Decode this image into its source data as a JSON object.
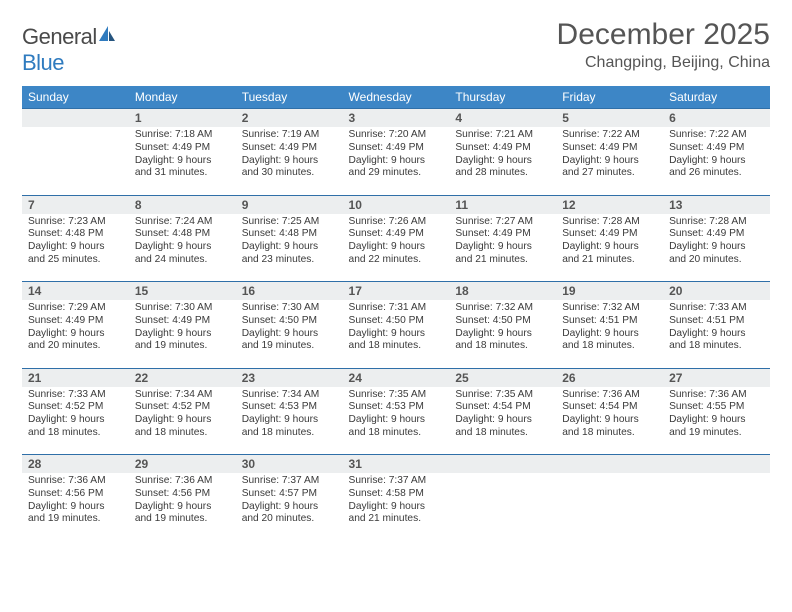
{
  "brand": {
    "part1": "General",
    "part2": "Blue"
  },
  "title": "December 2025",
  "location": "Changping, Beijing, China",
  "colors": {
    "header_bg": "#3d86c6",
    "header_text": "#ffffff",
    "daynum_bg": "#eceeef",
    "daynum_border": "#2f6fa8",
    "body_text": "#3a3a3a",
    "title_text": "#555555",
    "brand_grey": "#4a4a4a",
    "brand_blue": "#2f7bbf",
    "page_bg": "#ffffff"
  },
  "typography": {
    "title_fontsize": 30,
    "location_fontsize": 16,
    "dayhead_fontsize": 12,
    "cell_fontsize": 10.2
  },
  "day_headers": [
    "Sunday",
    "Monday",
    "Tuesday",
    "Wednesday",
    "Thursday",
    "Friday",
    "Saturday"
  ],
  "weeks": [
    {
      "nums": [
        "",
        "1",
        "2",
        "3",
        "4",
        "5",
        "6"
      ],
      "cells": [
        {
          "sunrise": "",
          "sunset": "",
          "daylight1": "",
          "daylight2": ""
        },
        {
          "sunrise": "Sunrise: 7:18 AM",
          "sunset": "Sunset: 4:49 PM",
          "daylight1": "Daylight: 9 hours",
          "daylight2": "and 31 minutes."
        },
        {
          "sunrise": "Sunrise: 7:19 AM",
          "sunset": "Sunset: 4:49 PM",
          "daylight1": "Daylight: 9 hours",
          "daylight2": "and 30 minutes."
        },
        {
          "sunrise": "Sunrise: 7:20 AM",
          "sunset": "Sunset: 4:49 PM",
          "daylight1": "Daylight: 9 hours",
          "daylight2": "and 29 minutes."
        },
        {
          "sunrise": "Sunrise: 7:21 AM",
          "sunset": "Sunset: 4:49 PM",
          "daylight1": "Daylight: 9 hours",
          "daylight2": "and 28 minutes."
        },
        {
          "sunrise": "Sunrise: 7:22 AM",
          "sunset": "Sunset: 4:49 PM",
          "daylight1": "Daylight: 9 hours",
          "daylight2": "and 27 minutes."
        },
        {
          "sunrise": "Sunrise: 7:22 AM",
          "sunset": "Sunset: 4:49 PM",
          "daylight1": "Daylight: 9 hours",
          "daylight2": "and 26 minutes."
        }
      ]
    },
    {
      "nums": [
        "7",
        "8",
        "9",
        "10",
        "11",
        "12",
        "13"
      ],
      "cells": [
        {
          "sunrise": "Sunrise: 7:23 AM",
          "sunset": "Sunset: 4:48 PM",
          "daylight1": "Daylight: 9 hours",
          "daylight2": "and 25 minutes."
        },
        {
          "sunrise": "Sunrise: 7:24 AM",
          "sunset": "Sunset: 4:48 PM",
          "daylight1": "Daylight: 9 hours",
          "daylight2": "and 24 minutes."
        },
        {
          "sunrise": "Sunrise: 7:25 AM",
          "sunset": "Sunset: 4:48 PM",
          "daylight1": "Daylight: 9 hours",
          "daylight2": "and 23 minutes."
        },
        {
          "sunrise": "Sunrise: 7:26 AM",
          "sunset": "Sunset: 4:49 PM",
          "daylight1": "Daylight: 9 hours",
          "daylight2": "and 22 minutes."
        },
        {
          "sunrise": "Sunrise: 7:27 AM",
          "sunset": "Sunset: 4:49 PM",
          "daylight1": "Daylight: 9 hours",
          "daylight2": "and 21 minutes."
        },
        {
          "sunrise": "Sunrise: 7:28 AM",
          "sunset": "Sunset: 4:49 PM",
          "daylight1": "Daylight: 9 hours",
          "daylight2": "and 21 minutes."
        },
        {
          "sunrise": "Sunrise: 7:28 AM",
          "sunset": "Sunset: 4:49 PM",
          "daylight1": "Daylight: 9 hours",
          "daylight2": "and 20 minutes."
        }
      ]
    },
    {
      "nums": [
        "14",
        "15",
        "16",
        "17",
        "18",
        "19",
        "20"
      ],
      "cells": [
        {
          "sunrise": "Sunrise: 7:29 AM",
          "sunset": "Sunset: 4:49 PM",
          "daylight1": "Daylight: 9 hours",
          "daylight2": "and 20 minutes."
        },
        {
          "sunrise": "Sunrise: 7:30 AM",
          "sunset": "Sunset: 4:49 PM",
          "daylight1": "Daylight: 9 hours",
          "daylight2": "and 19 minutes."
        },
        {
          "sunrise": "Sunrise: 7:30 AM",
          "sunset": "Sunset: 4:50 PM",
          "daylight1": "Daylight: 9 hours",
          "daylight2": "and 19 minutes."
        },
        {
          "sunrise": "Sunrise: 7:31 AM",
          "sunset": "Sunset: 4:50 PM",
          "daylight1": "Daylight: 9 hours",
          "daylight2": "and 18 minutes."
        },
        {
          "sunrise": "Sunrise: 7:32 AM",
          "sunset": "Sunset: 4:50 PM",
          "daylight1": "Daylight: 9 hours",
          "daylight2": "and 18 minutes."
        },
        {
          "sunrise": "Sunrise: 7:32 AM",
          "sunset": "Sunset: 4:51 PM",
          "daylight1": "Daylight: 9 hours",
          "daylight2": "and 18 minutes."
        },
        {
          "sunrise": "Sunrise: 7:33 AM",
          "sunset": "Sunset: 4:51 PM",
          "daylight1": "Daylight: 9 hours",
          "daylight2": "and 18 minutes."
        }
      ]
    },
    {
      "nums": [
        "21",
        "22",
        "23",
        "24",
        "25",
        "26",
        "27"
      ],
      "cells": [
        {
          "sunrise": "Sunrise: 7:33 AM",
          "sunset": "Sunset: 4:52 PM",
          "daylight1": "Daylight: 9 hours",
          "daylight2": "and 18 minutes."
        },
        {
          "sunrise": "Sunrise: 7:34 AM",
          "sunset": "Sunset: 4:52 PM",
          "daylight1": "Daylight: 9 hours",
          "daylight2": "and 18 minutes."
        },
        {
          "sunrise": "Sunrise: 7:34 AM",
          "sunset": "Sunset: 4:53 PM",
          "daylight1": "Daylight: 9 hours",
          "daylight2": "and 18 minutes."
        },
        {
          "sunrise": "Sunrise: 7:35 AM",
          "sunset": "Sunset: 4:53 PM",
          "daylight1": "Daylight: 9 hours",
          "daylight2": "and 18 minutes."
        },
        {
          "sunrise": "Sunrise: 7:35 AM",
          "sunset": "Sunset: 4:54 PM",
          "daylight1": "Daylight: 9 hours",
          "daylight2": "and 18 minutes."
        },
        {
          "sunrise": "Sunrise: 7:36 AM",
          "sunset": "Sunset: 4:54 PM",
          "daylight1": "Daylight: 9 hours",
          "daylight2": "and 18 minutes."
        },
        {
          "sunrise": "Sunrise: 7:36 AM",
          "sunset": "Sunset: 4:55 PM",
          "daylight1": "Daylight: 9 hours",
          "daylight2": "and 19 minutes."
        }
      ]
    },
    {
      "nums": [
        "28",
        "29",
        "30",
        "31",
        "",
        "",
        ""
      ],
      "cells": [
        {
          "sunrise": "Sunrise: 7:36 AM",
          "sunset": "Sunset: 4:56 PM",
          "daylight1": "Daylight: 9 hours",
          "daylight2": "and 19 minutes."
        },
        {
          "sunrise": "Sunrise: 7:36 AM",
          "sunset": "Sunset: 4:56 PM",
          "daylight1": "Daylight: 9 hours",
          "daylight2": "and 19 minutes."
        },
        {
          "sunrise": "Sunrise: 7:37 AM",
          "sunset": "Sunset: 4:57 PM",
          "daylight1": "Daylight: 9 hours",
          "daylight2": "and 20 minutes."
        },
        {
          "sunrise": "Sunrise: 7:37 AM",
          "sunset": "Sunset: 4:58 PM",
          "daylight1": "Daylight: 9 hours",
          "daylight2": "and 21 minutes."
        },
        {
          "sunrise": "",
          "sunset": "",
          "daylight1": "",
          "daylight2": ""
        },
        {
          "sunrise": "",
          "sunset": "",
          "daylight1": "",
          "daylight2": ""
        },
        {
          "sunrise": "",
          "sunset": "",
          "daylight1": "",
          "daylight2": ""
        }
      ]
    }
  ]
}
